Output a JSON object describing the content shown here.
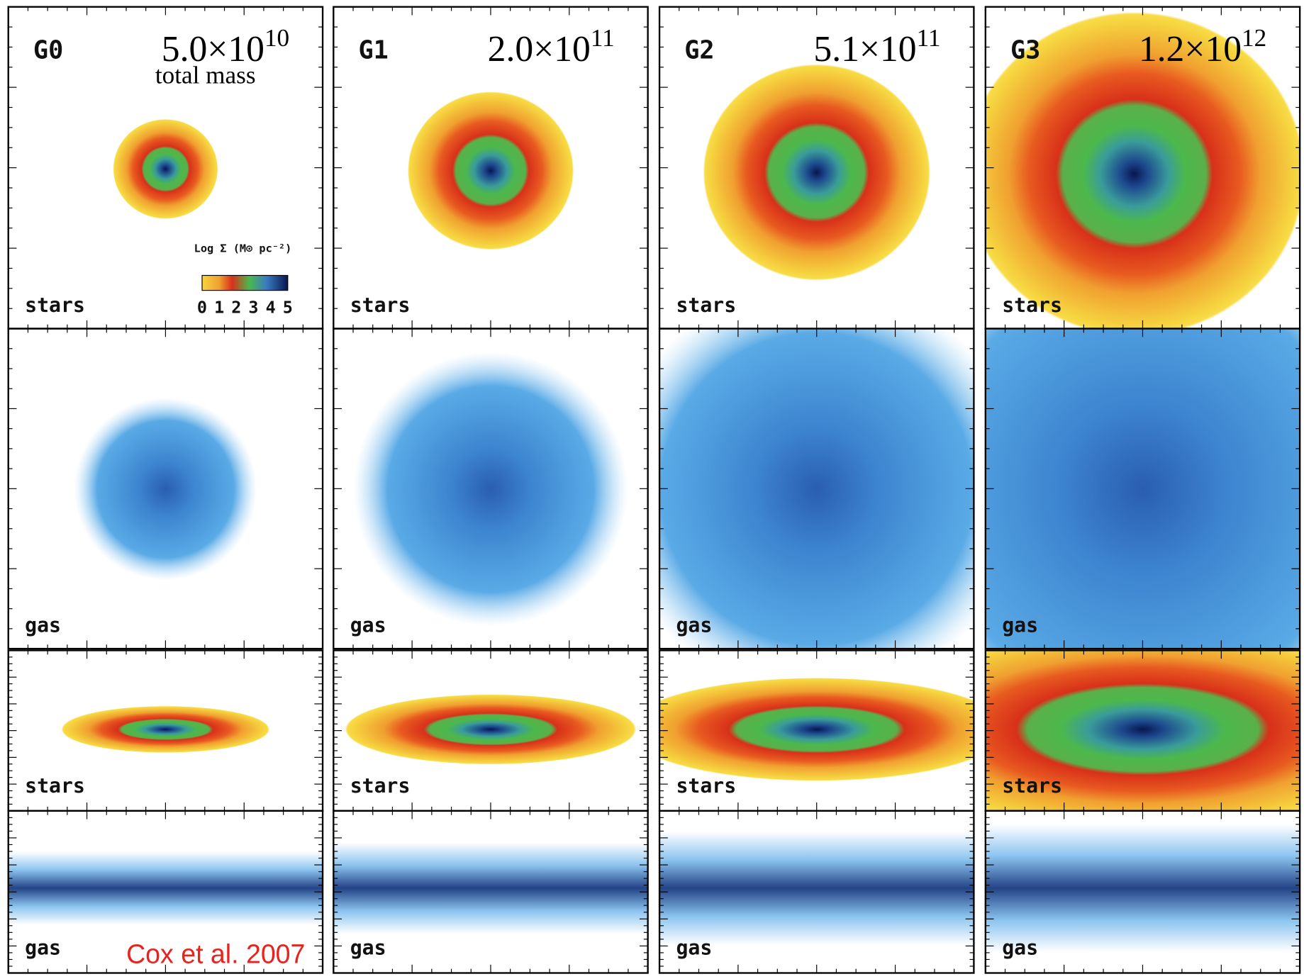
{
  "panels": [
    {
      "label": "G0",
      "mass": {
        "base": "5.0×10",
        "exponent": "10"
      }
    },
    {
      "label": "G1",
      "mass": {
        "base": "2.0×10",
        "exponent": "11"
      }
    },
    {
      "label": "G2",
      "mass": {
        "base": "5.1×10",
        "exponent": "11"
      }
    },
    {
      "label": "G3",
      "mass": {
        "base": "1.2×10",
        "exponent": "12"
      }
    }
  ],
  "mass_caption": "total mass",
  "row_labels": {
    "stars": "stars",
    "gas": "gas"
  },
  "colorbar": {
    "title": "Log Σ (M⊙ pc⁻²)",
    "ticks": [
      "0",
      "1",
      "2",
      "3",
      "4",
      "5"
    ]
  },
  "credit": "Cox et al. 2007"
}
